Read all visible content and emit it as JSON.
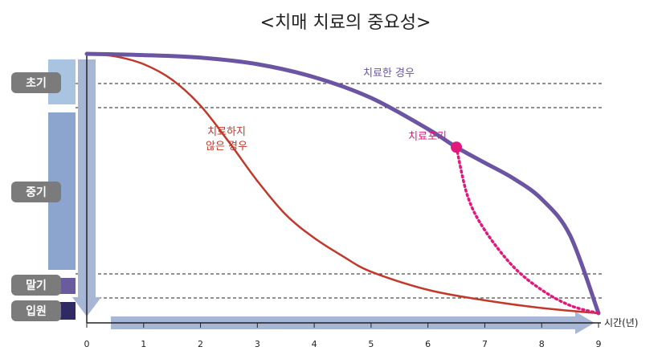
{
  "chart_data": {
    "type": "line",
    "title": "<치매 치료의 중요성>",
    "xlabel": "시간(년)",
    "ylabel": "",
    "xlim": [
      0,
      9
    ],
    "x_ticks": [
      "0",
      "1",
      "2",
      "3",
      "4",
      "5",
      "6",
      "7",
      "8",
      "9"
    ],
    "stages": [
      {
        "label": "초기",
        "color": "#a9c4e0",
        "label_bg": "#7b7b7b"
      },
      {
        "label": "중기",
        "color": "#8ca5cf",
        "label_bg": "#7b7b7b"
      },
      {
        "label": "말기",
        "color": "#6a5b9e",
        "label_bg": "#7b7b7b"
      },
      {
        "label": "입원",
        "color": "#2f2a63",
        "label_bg": "#7b7b7b"
      }
    ],
    "series": [
      {
        "label": "치료한 경우",
        "color": "#6b55a3",
        "x": [
          0,
          1,
          2,
          3,
          4,
          5,
          6,
          6.5,
          7,
          7.5,
          8,
          8.5,
          9
        ],
        "y": [
          1.0,
          0.995,
          0.985,
          0.96,
          0.91,
          0.83,
          0.71,
          0.64,
          0.58,
          0.52,
          0.44,
          0.3,
          0.0
        ]
      },
      {
        "label": "치료하지 않은 경우",
        "label_lines": [
          "치료하지",
          "않은 경우"
        ],
        "color": "#c0392b",
        "x": [
          0,
          0.5,
          1,
          1.5,
          2,
          2.5,
          3,
          3.5,
          4,
          4.5,
          5,
          6,
          7,
          8,
          9
        ],
        "y": [
          1.0,
          0.99,
          0.96,
          0.9,
          0.8,
          0.66,
          0.51,
          0.38,
          0.29,
          0.22,
          0.16,
          0.09,
          0.05,
          0.02,
          0.0
        ]
      },
      {
        "label": "치료포기",
        "color": "#e0197d",
        "style": "dotted",
        "x": [
          6.5,
          6.7,
          7.0,
          7.5,
          8.0,
          8.5,
          9
        ],
        "y": [
          0.64,
          0.45,
          0.32,
          0.18,
          0.09,
          0.03,
          0.0
        ]
      }
    ]
  }
}
